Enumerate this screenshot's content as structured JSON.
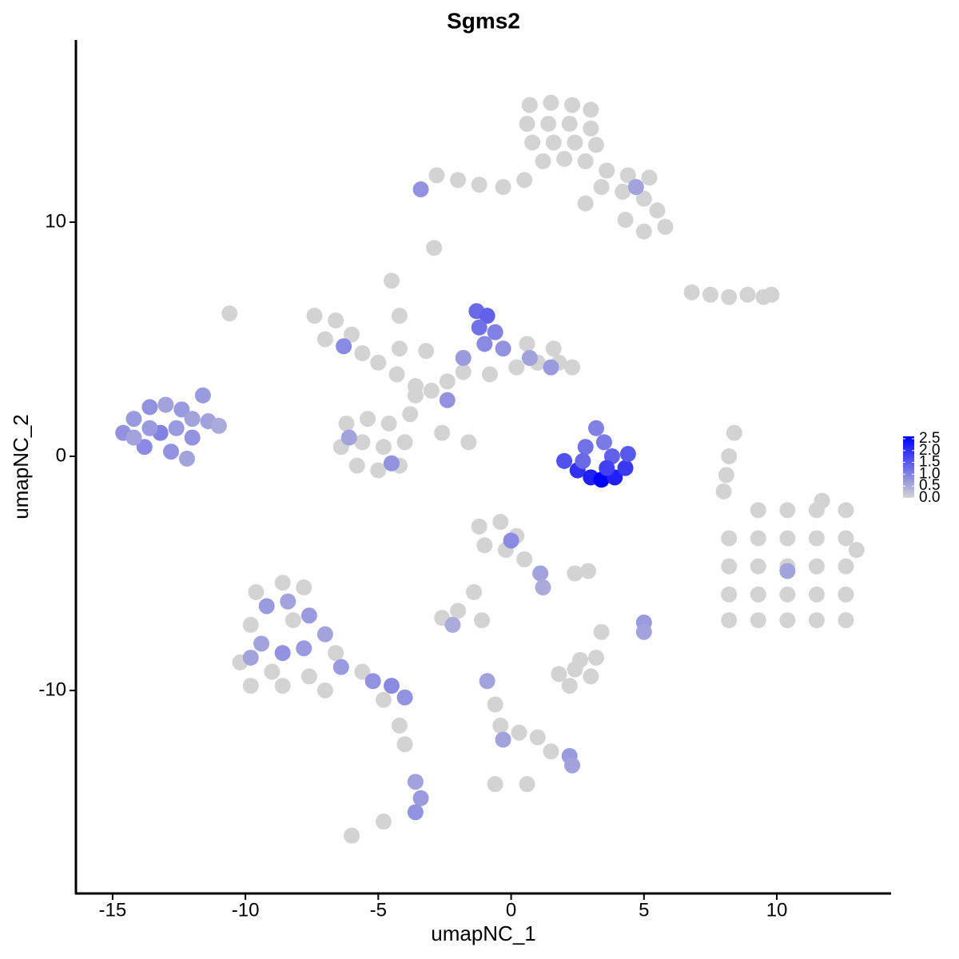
{
  "chart_data": {
    "type": "scatter",
    "title": "Sgms2",
    "x_label": "umapNC_1",
    "y_label": "umapNC_2",
    "xlim": [
      -16.38,
      14.3
    ],
    "ylim": [
      -18.67,
      17.78
    ],
    "xticks": [
      -15,
      -10,
      -5,
      0,
      5,
      10
    ],
    "yticks": [
      -10,
      0,
      10
    ],
    "grid": false,
    "colorscale": [
      "#d3d3d3",
      "#0000ff"
    ],
    "clim": [
      0,
      2.6
    ],
    "cticks": [
      {
        "value": 0,
        "label": "0.0"
      },
      {
        "value": 0.5,
        "label": "0.5"
      },
      {
        "value": 1,
        "label": "1.0"
      },
      {
        "value": 1.5,
        "label": "1.5"
      },
      {
        "value": 2,
        "label": "2.0"
      },
      {
        "value": 2.5,
        "label": "2.5"
      }
    ],
    "x": [
      0.7,
      1.5,
      2.3,
      3.0,
      0.6,
      1.4,
      2.2,
      3.0,
      0.8,
      1.6,
      2.4,
      3.2,
      1.2,
      2.0,
      2.8,
      3.6,
      4.4,
      5.2,
      3.4,
      4.2,
      5.0,
      5.5,
      5.8,
      5.0,
      4.3,
      0.5,
      -0.3,
      -1.2,
      -2.0,
      -2.8,
      2.8,
      4.7,
      -3.4,
      -2.9,
      6.8,
      7.5,
      8.2,
      8.9,
      9.5,
      9.8,
      -7.4,
      -6.6,
      -6.0,
      -7.0,
      -5.6,
      -5.0,
      -4.3,
      -3.6,
      -3.0,
      -4.2,
      -4.5,
      -4.2,
      -3.2,
      -2.4,
      -1.8,
      -0.8,
      0.2,
      1.0,
      1.8,
      2.3,
      1.6,
      0.6,
      -6.2,
      -5.4,
      -4.6,
      -3.8,
      -6.4,
      -5.6,
      -4.8,
      -4.0,
      -5.8,
      -5.0,
      -4.2,
      -3.6,
      -2.6,
      -1.6,
      -1.3,
      -0.9,
      -1.2,
      -0.6,
      -1.0,
      -0.3,
      -1.8,
      0.7,
      1.5,
      -2.4,
      -6.3,
      -6.1,
      -4.5,
      -14.6,
      -14.2,
      -13.6,
      -13.0,
      -12.4,
      -13.8,
      -13.2,
      -12.6,
      -12.0,
      -11.6,
      -11.4,
      -11.0,
      -12.8,
      -12.2,
      -13.6,
      -14.2,
      -12.0,
      -10.6,
      3.2,
      3.5,
      2.8,
      3.8,
      2.0,
      2.5,
      3.0,
      3.4,
      3.9,
      4.3,
      4.4,
      2.7,
      3.6,
      9.3,
      10.4,
      11.5,
      12.6,
      8.2,
      9.3,
      10.4,
      11.5,
      12.6,
      8.2,
      9.3,
      10.4,
      11.5,
      12.6,
      8.2,
      9.3,
      10.4,
      11.5,
      12.6,
      8.2,
      9.3,
      10.4,
      11.5,
      12.6,
      13.0,
      11.7,
      10.4,
      8.4,
      8.2,
      8.1,
      8.0,
      -1.2,
      -0.4,
      0.2,
      -1.0,
      -0.2,
      0.5,
      1.1,
      0.0,
      1.2,
      -1.4,
      -2.0,
      -2.6,
      -2.2,
      -1.1,
      2.9,
      2.4,
      5.0,
      5.0,
      1.8,
      2.4,
      3.0,
      2.6,
      2.2,
      3.2,
      3.4,
      -0.9,
      -0.6,
      -0.4,
      -0.3,
      0.3,
      1.0,
      1.5,
      2.2,
      2.3,
      0.6,
      -9.6,
      -8.6,
      -7.8,
      -9.8,
      -8.2,
      -10.2,
      -9.0,
      -7.6,
      -8.6,
      -6.6,
      -5.6,
      -4.8,
      -7.0,
      -9.8,
      -9.2,
      -8.4,
      -7.6,
      -9.4,
      -8.6,
      -7.8,
      -7.0,
      -6.4,
      -5.2,
      -4.5,
      -4.0,
      -9.8,
      -4.2,
      -4.0,
      -3.6,
      -3.4,
      -3.6,
      -6.0,
      -4.8,
      -0.6
    ],
    "y": [
      15.0,
      15.1,
      15.0,
      14.8,
      14.2,
      14.2,
      14.2,
      14.0,
      13.4,
      13.4,
      13.4,
      13.3,
      12.6,
      12.7,
      12.6,
      12.2,
      12.0,
      11.9,
      11.5,
      11.3,
      11.0,
      10.5,
      9.8,
      9.6,
      10.1,
      11.8,
      11.5,
      11.6,
      11.8,
      12.0,
      10.8,
      11.5,
      11.4,
      8.9,
      7.0,
      6.9,
      6.8,
      6.9,
      6.8,
      6.9,
      6.0,
      5.8,
      5.2,
      5.0,
      4.4,
      4.0,
      3.5,
      3.0,
      2.8,
      4.6,
      7.5,
      6.0,
      4.5,
      3.2,
      3.6,
      3.5,
      3.8,
      4.0,
      4.0,
      3.8,
      4.6,
      4.8,
      1.4,
      1.6,
      1.4,
      1.8,
      0.4,
      0.6,
      0.4,
      0.6,
      -0.4,
      -0.6,
      -0.4,
      2.6,
      1.0,
      0.6,
      6.2,
      6.0,
      5.5,
      5.3,
      4.8,
      4.6,
      4.2,
      4.2,
      3.8,
      2.4,
      4.7,
      0.8,
      -0.3,
      1.0,
      1.6,
      2.1,
      2.2,
      2.0,
      0.4,
      1.0,
      1.2,
      1.6,
      2.6,
      1.5,
      1.3,
      0.2,
      -0.1,
      1.2,
      0.8,
      0.8,
      6.1,
      1.2,
      0.6,
      0.4,
      0.0,
      -0.2,
      -0.6,
      -0.9,
      -1.0,
      -0.9,
      -0.5,
      0.1,
      -0.2,
      -0.5,
      -2.3,
      -2.3,
      -2.3,
      -2.3,
      -3.5,
      -3.5,
      -3.5,
      -3.5,
      -3.5,
      -4.7,
      -4.7,
      -4.7,
      -4.7,
      -4.7,
      -5.9,
      -5.9,
      -5.9,
      -5.9,
      -5.9,
      -7.0,
      -7.0,
      -7.0,
      -7.0,
      -7.0,
      -4.0,
      -1.9,
      -4.9,
      1.0,
      0,
      -0.8,
      -1.5,
      -3.0,
      -2.8,
      -3.4,
      -3.8,
      -4.0,
      -4.4,
      -5.0,
      -3.6,
      -5.6,
      -5.8,
      -6.6,
      -6.9,
      -7.2,
      -7.0,
      -4.9,
      -5.0,
      -7.1,
      -7.5,
      -9.3,
      -9.1,
      -9.4,
      -8.7,
      -9.8,
      -8.6,
      -7.5,
      -9.6,
      -10.6,
      -11.5,
      -12.1,
      -11.8,
      -12.0,
      -12.6,
      -12.8,
      -13.2,
      -14.0,
      -5.8,
      -5.4,
      -5.6,
      -7.2,
      -7.0,
      -8.8,
      -9.2,
      -9.4,
      -9.8,
      -8.4,
      -9.2,
      -10.4,
      -10.0,
      -9.8,
      -6.4,
      -6.2,
      -6.8,
      -8.0,
      -8.4,
      -8.2,
      -7.6,
      -9.0,
      -9.6,
      -9.8,
      -10.3,
      -8.6,
      -11.5,
      -12.3,
      -13.9,
      -14.6,
      -15.2,
      -16.2,
      -15.6,
      -14.0
    ],
    "values": [
      0,
      0,
      0,
      0,
      0,
      0,
      0,
      0,
      0,
      0,
      0,
      0,
      0,
      0,
      0,
      0,
      0,
      0,
      0,
      0,
      0,
      0,
      0,
      0,
      0,
      0,
      0,
      0,
      0,
      0,
      0,
      0.6,
      0.8,
      0,
      0,
      0,
      0,
      0,
      0,
      0,
      0,
      0,
      0,
      0,
      0,
      0,
      0,
      0,
      0,
      0,
      0,
      0,
      0,
      0,
      0,
      0,
      0,
      0,
      0,
      0,
      0,
      0,
      0,
      0,
      0,
      0,
      0,
      0,
      0,
      0,
      0,
      0,
      0,
      0,
      0,
      0,
      1.3,
      1.4,
      1.2,
      1.0,
      0.9,
      0.8,
      0.7,
      0.6,
      0.7,
      0.8,
      0.9,
      0.6,
      0.8,
      0.8,
      0.7,
      0.8,
      0.6,
      0.7,
      0.9,
      1.0,
      0.7,
      0.6,
      0.7,
      0.6,
      0.5,
      0.8,
      0.6,
      0.7,
      0.6,
      0.8,
      0,
      1.0,
      1.1,
      1.2,
      1.4,
      1.6,
      2.0,
      2.2,
      2.6,
      2.2,
      1.9,
      1.5,
      1.3,
      1.8,
      0,
      0,
      0,
      0,
      0,
      0,
      0,
      0,
      0,
      0,
      0,
      0,
      0,
      0,
      0,
      0,
      0,
      0,
      0,
      0,
      0,
      0,
      0,
      0,
      0,
      0,
      0.6,
      0,
      0,
      0,
      0,
      0,
      0,
      0,
      0,
      0,
      0,
      0.6,
      0.9,
      0.5,
      0,
      0,
      0,
      0.5,
      0,
      0,
      0,
      0.7,
      0.6,
      0,
      0,
      0,
      0,
      0,
      0,
      0,
      0.6,
      0,
      0,
      0.6,
      0,
      0,
      0,
      0.7,
      0.6,
      0,
      0,
      0,
      0,
      0,
      0,
      0,
      0,
      0,
      0,
      0,
      0,
      0,
      0,
      0,
      0.7,
      0.6,
      0.7,
      0.6,
      0.8,
      0.7,
      0.6,
      0.7,
      0.8,
      0.9,
      0.8,
      0.6,
      0,
      0,
      0.6,
      0.7,
      0.8,
      0,
      0,
      0
    ]
  }
}
